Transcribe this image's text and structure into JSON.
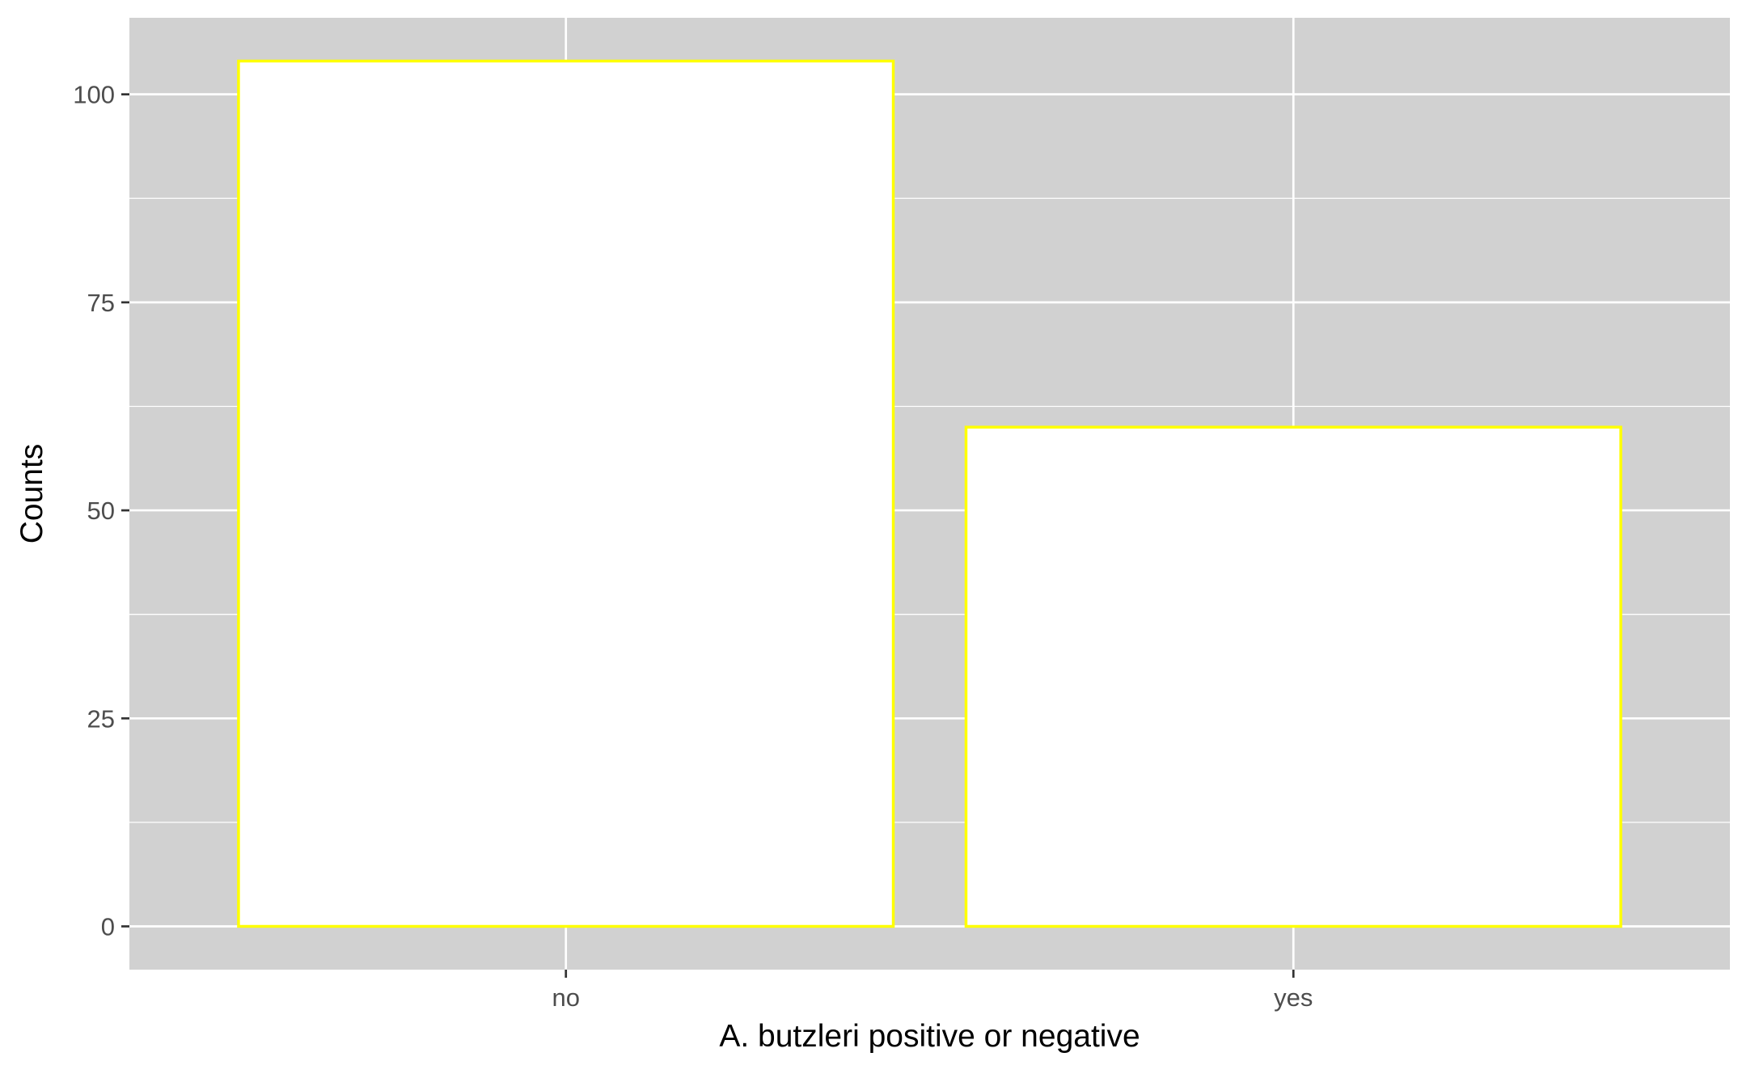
{
  "chart_data": {
    "type": "bar",
    "categories": [
      "no",
      "yes"
    ],
    "values": [
      104,
      60
    ],
    "title": "",
    "xlabel": "A. butzleri positive or negative",
    "ylabel": "Counts",
    "ylim": [
      -5.2,
      109.2
    ],
    "yticks": [
      0,
      25,
      50,
      75,
      100
    ],
    "yminor": [
      12.5,
      37.5,
      62.5,
      87.5
    ],
    "ytick_labels": [
      "0",
      "25",
      "50",
      "75",
      "100"
    ],
    "grid": true,
    "legend": "none",
    "colors": {
      "panel_background": "#d1d1d1",
      "grid": "#ffffff",
      "bar_fill": "#ffffff",
      "bar_outline": "#ffff00",
      "axis_text": "#4d4d4d",
      "axis_title": "#000000",
      "tick": "#333333"
    }
  }
}
